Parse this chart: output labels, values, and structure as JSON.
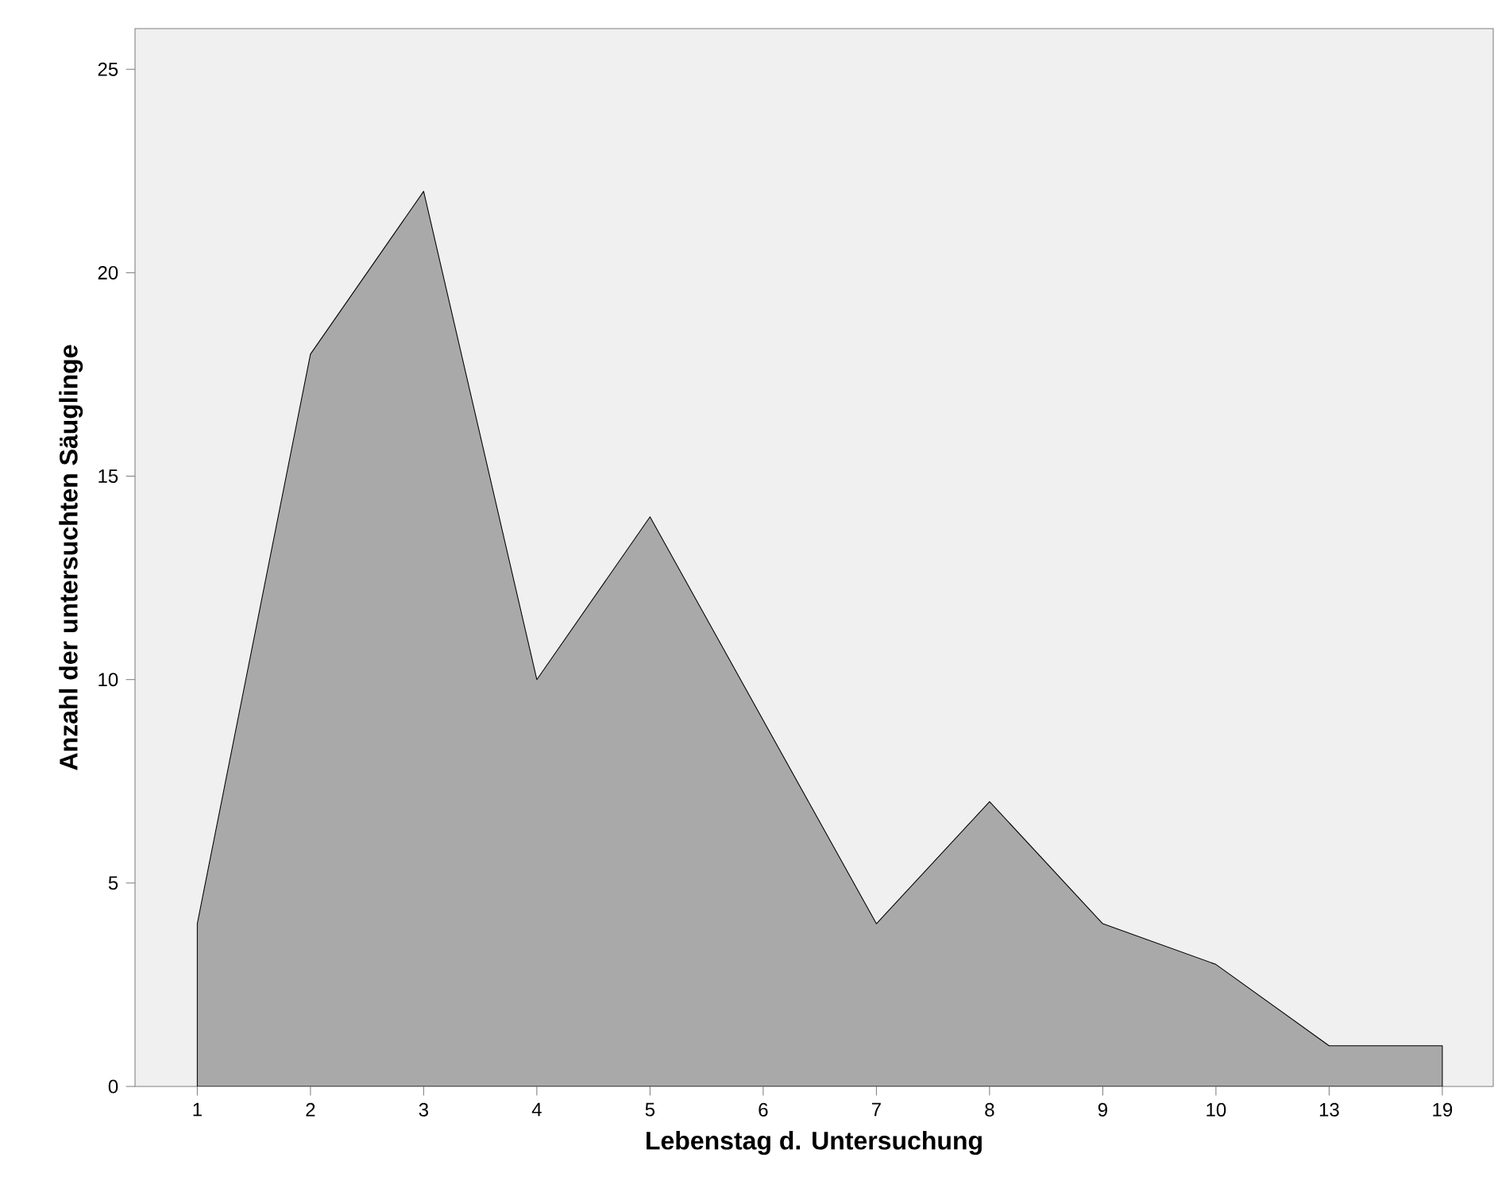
{
  "chart_data": {
    "type": "area",
    "xlabel": "Lebenstag d. Untersuchung",
    "ylabel": "Anzahl der untersuchten Säuglinge",
    "categories": [
      "1",
      "2",
      "3",
      "4",
      "5",
      "6",
      "7",
      "8",
      "9",
      "10",
      "13",
      "19"
    ],
    "values": [
      4,
      18,
      22,
      10,
      14,
      9,
      4,
      7,
      4,
      3,
      1,
      1
    ],
    "color": "#a9a9a9",
    "ylim": [
      0,
      26
    ],
    "yticks": [
      0,
      5,
      10,
      15,
      20,
      25
    ],
    "marker": "none",
    "line_style": "solid"
  }
}
